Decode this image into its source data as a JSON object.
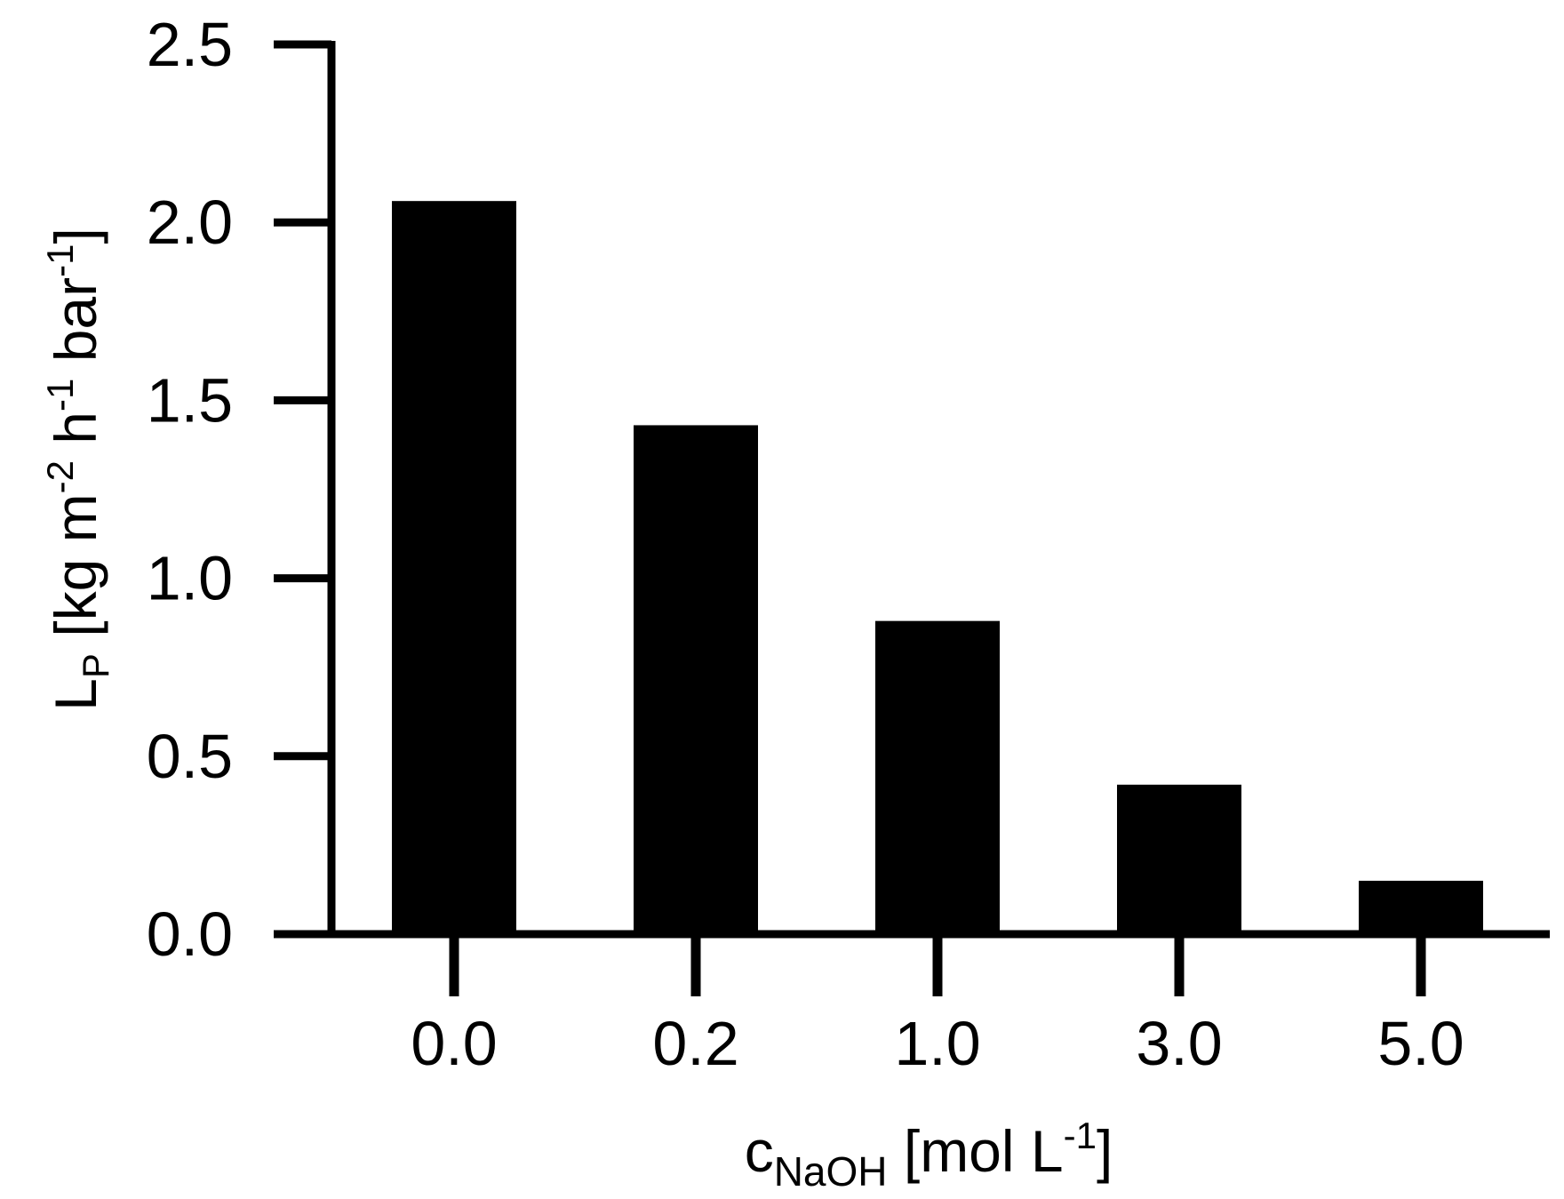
{
  "chart_data": {
    "type": "bar",
    "categories": [
      "0.0",
      "0.2",
      "1.0",
      "3.0",
      "5.0"
    ],
    "values": [
      2.06,
      1.43,
      0.88,
      0.42,
      0.15
    ],
    "ylim": [
      0,
      2.5
    ],
    "yticks": [
      "0.0",
      "0.5",
      "1.0",
      "1.5",
      "2.0",
      "2.5"
    ],
    "ytick_values": [
      0,
      0.5,
      1.0,
      1.5,
      2.0,
      2.5
    ],
    "ylabel": {
      "main": "L",
      "sub": "P",
      "rest": " [kg m",
      "sup1": "-2",
      "mid1": " h",
      "sup2": "-1",
      "mid2": " bar",
      "sup3": "-1",
      "end": "]"
    },
    "xlabel": {
      "main": "c",
      "sub": "NaOH",
      "rest": " [mol L",
      "sup": "-1",
      "end": "]"
    },
    "grid": false,
    "legend": "none",
    "colors": {
      "bar": "#000000",
      "axis": "#000000"
    }
  }
}
